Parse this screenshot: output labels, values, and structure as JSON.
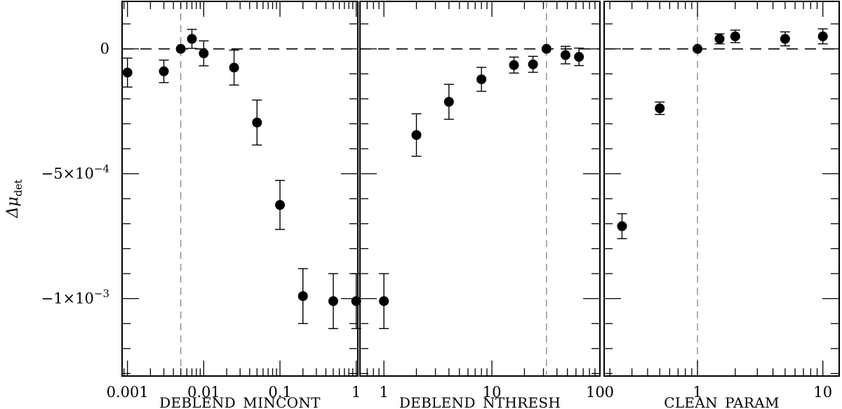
{
  "ylabel": {
    "main": "Δμ",
    "sub": "det"
  },
  "yticks": [
    {
      "value": 0,
      "label": "0"
    },
    {
      "value": -0.0005,
      "label": "−5×10",
      "exp": "−4"
    },
    {
      "value": -0.001,
      "label": "−1×10",
      "exp": "−3"
    }
  ],
  "colors": {
    "points": "#000000",
    "frame": "#000000",
    "zero_line": "#000000",
    "marker_line": "#8c8c8c"
  },
  "chart_data": [
    {
      "type": "scatter",
      "xlabel": "DEBLEND_MINCONT",
      "xscale": "log",
      "xlim": [
        0.00085,
        1.05
      ],
      "ylim": [
        -0.00131,
        0.00019
      ],
      "xticks": [
        0.001,
        0.01,
        0.1,
        1
      ],
      "xticklabels": [
        "0.001",
        "0.01",
        "0.1",
        "1"
      ],
      "reference_x": 0.005,
      "x": [
        0.001,
        0.003,
        0.005,
        0.007,
        0.01,
        0.025,
        0.05,
        0.1,
        0.2,
        0.5,
        1
      ],
      "y": [
        -9.5e-05,
        -9e-05,
        0.0,
        4e-05,
        -1.8e-05,
        -7.5e-05,
        -0.000295,
        -0.000625,
        -0.00099,
        -0.00101,
        -0.00101
      ],
      "yerr": [
        5.8e-05,
        4.5e-05,
        0.0,
        3.8e-05,
        5e-05,
        7e-05,
        9e-05,
        9.8e-05,
        0.00011,
        0.00011,
        0.00011
      ]
    },
    {
      "type": "scatter",
      "xlabel": "DEBLEND_NTHRESH",
      "xscale": "log",
      "xlim": [
        0.6,
        100
      ],
      "ylim": [
        -0.00131,
        0.00019
      ],
      "xticks": [
        1,
        10,
        100
      ],
      "xticklabels": [
        "1",
        "10",
        "100"
      ],
      "reference_x": 32,
      "x": [
        1,
        2,
        4,
        8,
        16,
        24,
        32,
        48,
        64
      ],
      "y": [
        -0.00101,
        -0.000345,
        -0.000212,
        -0.000122,
        -6.5e-05,
        -6.2e-05,
        0.0,
        -2.5e-05,
        -3.2e-05
      ],
      "yerr": [
        0.00011,
        8.5e-05,
        7e-05,
        4.8e-05,
        3.2e-05,
        3.2e-05,
        0.0,
        3.5e-05,
        3.5e-05
      ]
    },
    {
      "type": "scatter",
      "xlabel": "CLEAN_PARAM",
      "xscale": "log",
      "xlim": [
        0.18,
        13.5
      ],
      "ylim": [
        -0.00131,
        0.00019
      ],
      "xticks": [
        1,
        10
      ],
      "xticklabels": [
        "1",
        "10"
      ],
      "reference_x": 1,
      "x": [
        0.25,
        0.5,
        1,
        1.5,
        2,
        5,
        10
      ],
      "y": [
        -0.00071,
        -0.000238,
        0.0,
        4e-05,
        5e-05,
        4e-05,
        5e-05
      ],
      "yerr": [
        5e-05,
        2.5e-05,
        0.0,
        2e-05,
        2.5e-05,
        2.8e-05,
        3e-05
      ]
    }
  ]
}
